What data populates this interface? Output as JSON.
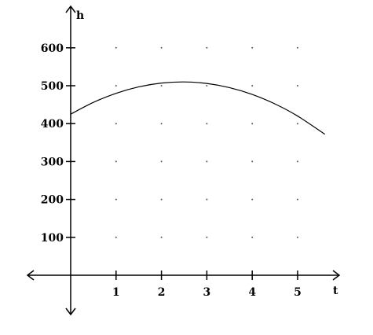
{
  "chart_data": {
    "type": "line",
    "xlabel": "t",
    "ylabel": "h",
    "xlim": [
      -1,
      6
    ],
    "ylim": [
      -100,
      700
    ],
    "x_ticks": [
      "1",
      "2",
      "3",
      "4",
      "5"
    ],
    "y_ticks": [
      "100",
      "200",
      "300",
      "400",
      "500",
      "600"
    ],
    "grid": "dots",
    "series": [
      {
        "x": [
          0,
          0.5,
          1,
          1.5,
          2,
          2.5,
          3,
          3.5,
          4,
          4.5,
          5,
          5.6
        ],
        "y": [
          425,
          456,
          480,
          497,
          507,
          510,
          506,
          495,
          477,
          452,
          420,
          372
        ],
        "color": "#000000"
      }
    ]
  }
}
